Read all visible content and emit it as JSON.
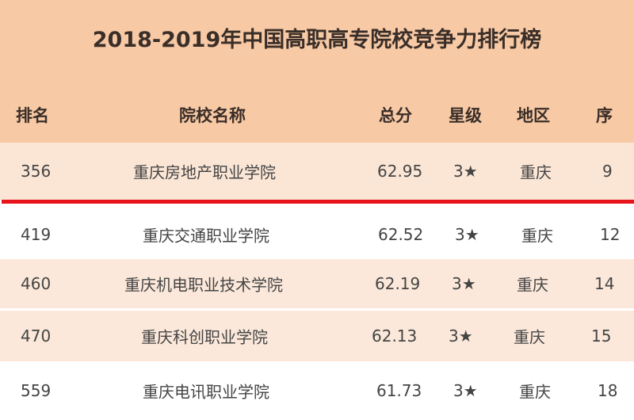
{
  "title": "2018-2019年中国高职高专院校竞争力排行榜",
  "headers": {
    "rank": "排名",
    "name": "院校名称",
    "score": "总分",
    "star": "星级",
    "region": "地区",
    "order": "序"
  },
  "rows": [
    {
      "rank": "356",
      "name": "重庆房地产职业学院",
      "score": "62.95",
      "star": "3★",
      "region": "重庆",
      "order": "9"
    },
    {
      "rank": "419",
      "name": "重庆交通职业学院",
      "score": "62.52",
      "star": "3★",
      "region": "重庆",
      "order": "12"
    },
    {
      "rank": "460",
      "name": "重庆机电职业技术学院",
      "score": "62.19",
      "star": "3★",
      "region": "重庆",
      "order": "14"
    },
    {
      "rank": "470",
      "name": "重庆科创职业学院",
      "score": "62.13",
      "star": "3★",
      "region": "重庆",
      "order": "15"
    },
    {
      "rank": "559",
      "name": "重庆电讯职业学院",
      "score": "61.73",
      "star": "3★",
      "region": "重庆",
      "order": "18"
    }
  ],
  "colors": {
    "header": "#f7c9a5",
    "highlight": "#fbe6d6",
    "stripe": "#fbe8da",
    "line": "#e8141b"
  }
}
